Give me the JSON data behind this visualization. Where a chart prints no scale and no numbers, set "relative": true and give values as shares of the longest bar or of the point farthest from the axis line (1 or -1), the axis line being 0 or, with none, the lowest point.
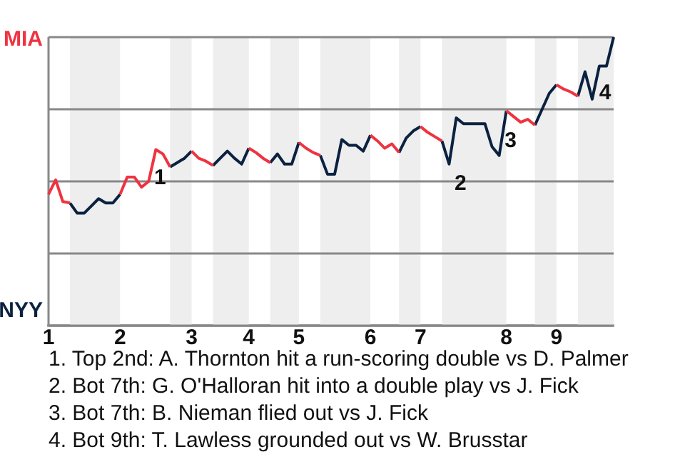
{
  "chart_data": {
    "type": "line",
    "relative": true,
    "grid": "y",
    "legend": false,
    "marker": "none",
    "categories": [
      "1",
      null,
      null,
      null,
      null,
      null,
      null,
      null,
      null,
      null,
      "2",
      null,
      null,
      null,
      null,
      null,
      null,
      null,
      null,
      null,
      "3",
      null,
      null,
      null,
      null,
      null,
      null,
      null,
      "4",
      null,
      null,
      null,
      null,
      null,
      null,
      "5",
      null,
      null,
      null,
      null,
      null,
      null,
      null,
      null,
      null,
      "6",
      null,
      null,
      null,
      null,
      null,
      null,
      "7",
      null,
      null,
      null,
      null,
      null,
      null,
      null,
      null,
      null,
      null,
      null,
      "8",
      null,
      null,
      null,
      null,
      null,
      null,
      "9",
      null,
      null,
      null,
      null,
      null,
      null,
      null,
      null
    ],
    "series": [
      {
        "color": "#ef3340",
        "values": [
          0.455,
          0.505,
          0.43,
          0.425,
          null,
          null,
          null,
          null,
          null,
          null,
          0.455,
          0.515,
          0.515,
          0.48,
          0.5,
          0.61,
          0.595,
          0.55,
          null,
          null,
          0.605,
          0.58,
          0.57,
          0.555,
          null,
          null,
          null,
          null,
          0.615,
          0.6,
          0.58,
          0.565,
          null,
          null,
          null,
          0.635,
          0.615,
          0.6,
          0.59,
          null,
          null,
          null,
          null,
          null,
          null,
          0.66,
          0.64,
          0.615,
          0.63,
          0.6,
          null,
          null,
          0.69,
          0.67,
          0.655,
          0.64,
          null,
          null,
          null,
          null,
          null,
          null,
          null,
          null,
          0.745,
          0.725,
          0.705,
          0.715,
          0.695,
          null,
          null,
          0.835,
          0.82,
          0.81,
          0.795,
          null,
          null,
          null,
          null,
          null
        ]
      },
      {
        "color": "#0a2240",
        "values": [
          null,
          null,
          null,
          0.425,
          0.39,
          0.39,
          0.415,
          0.44,
          0.425,
          0.425,
          0.455,
          null,
          null,
          null,
          null,
          null,
          null,
          0.55,
          0.565,
          0.58,
          0.605,
          null,
          null,
          0.555,
          0.58,
          0.605,
          0.58,
          0.56,
          0.615,
          null,
          null,
          0.565,
          0.595,
          0.56,
          0.56,
          0.635,
          null,
          null,
          0.59,
          0.525,
          0.525,
          0.645,
          0.625,
          0.625,
          0.605,
          0.66,
          null,
          null,
          null,
          0.6,
          0.65,
          0.675,
          0.69,
          null,
          null,
          0.64,
          0.56,
          0.72,
          0.7,
          0.7,
          0.7,
          0.7,
          0.62,
          0.59,
          0.745,
          null,
          null,
          null,
          0.695,
          0.75,
          0.805,
          0.835,
          null,
          null,
          0.795,
          0.88,
          0.785,
          0.9,
          0.9,
          1
        ]
      }
    ],
    "annotations": [
      "MIA",
      "NYY",
      "1",
      "2",
      "3",
      "4",
      "1. Top 2nd: A. Thornton hit a run-scoring double vs D. Palmer",
      "2. Bot 7th: G. O'Halloran hit into a double play vs J. Fick",
      "3. Bot 7th: B. Nieman flied out vs J. Fick",
      "4. Bot 9th: T. Lawless grounded out vs W. Brusstar"
    ]
  }
}
